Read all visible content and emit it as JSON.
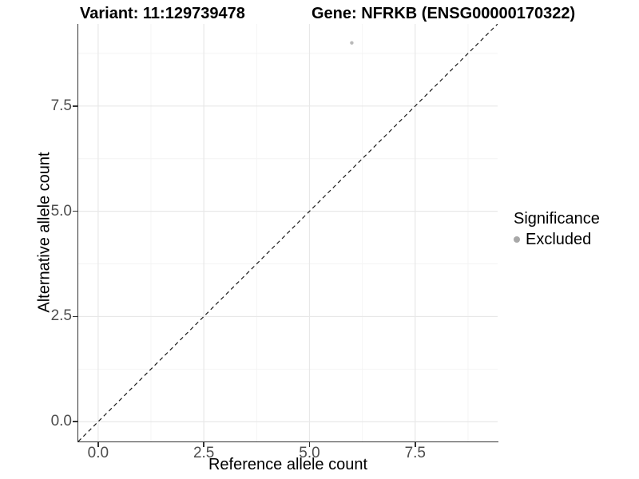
{
  "chart_data": {
    "type": "scatter",
    "title_left": "Variant: 11:129739478",
    "title_right": "Gene: NFRKB (ENSG00000170322)",
    "xlabel": "Reference allele count",
    "ylabel": "Alternative allele count",
    "xlim": [
      -0.47,
      9.45
    ],
    "ylim": [
      -0.47,
      9.45
    ],
    "x_ticks": {
      "values": [
        0,
        2.5,
        5,
        7.5
      ],
      "labels": [
        "0.0",
        "2.5",
        "5.0",
        "7.5"
      ]
    },
    "y_ticks": {
      "values": [
        0,
        2.5,
        5,
        7.5
      ],
      "labels": [
        "0.0",
        "2.5",
        "5.0",
        "7.5"
      ]
    },
    "x_minor_ticks": [
      1.25,
      3.75,
      6.25,
      8.75
    ],
    "y_minor_ticks": [
      1.25,
      3.75,
      6.25,
      8.75
    ],
    "grid": true,
    "series": [
      {
        "name": "Excluded",
        "color": "#b9b9b9",
        "marker": "circle",
        "points": [
          {
            "x": 6,
            "y": 9
          }
        ]
      }
    ],
    "reference_line": {
      "slope": 1,
      "intercept": 0,
      "style": "dashed",
      "color": "#1a1a1a"
    },
    "legend": {
      "title": "Significance",
      "position": "right",
      "items": [
        {
          "label": "Excluded",
          "color": "#a8a8a8",
          "marker": "circle"
        }
      ]
    }
  },
  "colors": {
    "background": "#ffffff",
    "grid_major": "#e8e8e8",
    "grid_minor": "#f4f4f4",
    "axis_line": "#333333",
    "tick_label": "#4d4d4d",
    "point": "#b9b9b9"
  }
}
